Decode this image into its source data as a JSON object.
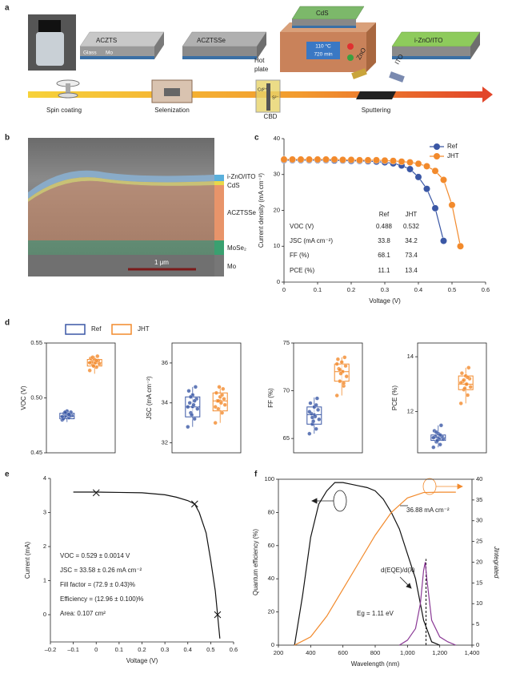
{
  "panel_labels": [
    "a",
    "b",
    "c",
    "d",
    "e",
    "f"
  ],
  "schematic": {
    "layers": [
      "ACZTS",
      "ACZTSSe",
      "CdS",
      "i-ZnO/ITO"
    ],
    "substrate": [
      "Glass",
      "Mo"
    ],
    "hotplate": [
      "Hot",
      "plate"
    ],
    "hotplate_display": [
      "110 °C",
      "720 min"
    ],
    "steps": [
      "Spin coating",
      "Selenization",
      "CBD",
      "Sputtering"
    ],
    "targets": [
      "ZnO",
      "ITO"
    ],
    "ions": [
      "Cd²⁺",
      "S²⁻"
    ]
  },
  "micrograph": {
    "layers": [
      "i-ZnO/ITO",
      "CdS",
      "ACZTSSe",
      "MoSe₂",
      "Mo"
    ],
    "scale_bar": "1 μm"
  },
  "chart_data": [
    {
      "type": "line",
      "xlabel": "Voltage (V)",
      "ylabel": "Current density (mA cm⁻²)",
      "legend": "upper right",
      "marker": "sphere",
      "x": [
        0,
        0.025,
        0.05,
        0.075,
        0.1,
        0.125,
        0.15,
        0.175,
        0.2,
        0.225,
        0.25,
        0.275,
        0.3,
        0.325,
        0.35,
        0.375,
        0.4,
        0.425,
        0.45,
        0.475,
        0.5,
        0.525
      ],
      "series": [
        {
          "name": "Ref",
          "color": "#3a57a5",
          "values": [
            34,
            34,
            34,
            34,
            34,
            34,
            33.9,
            33.9,
            33.8,
            33.8,
            33.7,
            33.6,
            33.4,
            33.1,
            32.5,
            31.5,
            29.3,
            26,
            20.6,
            11.5,
            null,
            null
          ]
        },
        {
          "name": "JHT",
          "color": "#f28a2c",
          "values": [
            34.2,
            34.2,
            34.2,
            34.2,
            34.2,
            34.2,
            34.2,
            34.1,
            34.1,
            34,
            34,
            34,
            33.9,
            33.8,
            33.6,
            33.4,
            33,
            32.3,
            31,
            28.5,
            21.5,
            10
          ]
        }
      ],
      "xlim": [
        0,
        0.6
      ],
      "xticks": [
        0,
        0.1,
        0.2,
        0.3,
        0.4,
        0.5,
        0.6
      ],
      "ylim": [
        0,
        40
      ],
      "yticks": [
        0,
        10,
        20,
        30,
        40
      ],
      "table": {
        "columns": [
          "Ref",
          "JHT"
        ],
        "rows": [
          {
            "label": "VOC (V)",
            "values": [
              0.488,
              0.532
            ]
          },
          {
            "label": "JSC (mA cm⁻²)",
            "values": [
              33.8,
              34.2
            ]
          },
          {
            "label": "FF (%)",
            "values": [
              68.1,
              73.4
            ]
          },
          {
            "label": "PCE (%)",
            "values": [
              11.1,
              13.4
            ]
          }
        ]
      }
    },
    {
      "type": "box",
      "series": [
        {
          "name": "Ref",
          "color": "#3a57a5"
        },
        {
          "name": "JHT",
          "color": "#f28a2c"
        }
      ],
      "subplots": [
        {
          "ylabel": "VOC (V)",
          "ylim": [
            0.45,
            0.55
          ],
          "yticks": [
            0.45,
            {
              "value": 0.5,
              "label": "0.50"
            },
            0.55
          ],
          "groups": [
            {
              "min": 0.478,
              "q1": 0.481,
              "median": 0.483,
              "q3": 0.486,
              "max": 0.489,
              "mean": 0.484,
              "points": [
                0.48,
                0.482,
                0.483,
                0.484,
                0.485,
                0.486,
                0.487,
                0.488,
                0.481,
                0.484,
                0.486,
                0.483,
                0.485,
                0.487
              ]
            },
            {
              "min": 0.522,
              "q1": 0.529,
              "median": 0.532,
              "q3": 0.535,
              "max": 0.538,
              "mean": 0.532,
              "points": [
                0.525,
                0.528,
                0.53,
                0.531,
                0.532,
                0.533,
                0.534,
                0.535,
                0.536,
                0.538,
                0.529,
                0.532,
                0.534,
                0.537
              ]
            }
          ]
        },
        {
          "ylabel": "JSC (mA cm⁻²)",
          "ylim": [
            31.5,
            37
          ],
          "yticks": [
            32,
            34,
            36
          ],
          "groups": [
            {
              "min": 32.8,
              "q1": 33.3,
              "median": 33.8,
              "q3": 34.3,
              "max": 34.8,
              "mean": 33.8,
              "points": [
                32.8,
                33.2,
                33.5,
                33.7,
                33.9,
                34,
                34.2,
                34.4,
                34.6,
                34.8,
                33.4,
                33.8,
                34.1,
                34.3
              ]
            },
            {
              "min": 33,
              "q1": 33.6,
              "median": 34.1,
              "q3": 34.5,
              "max": 34.8,
              "mean": 34.1,
              "points": [
                33,
                33.5,
                33.7,
                33.9,
                34,
                34.1,
                34.2,
                34.3,
                34.5,
                34.7,
                34.8,
                33.8,
                34.4,
                34.1
              ]
            }
          ]
        },
        {
          "ylabel": "FF (%)",
          "ylim": [
            63.5,
            75
          ],
          "yticks": [
            65,
            70,
            75
          ],
          "groups": [
            {
              "min": 65.5,
              "q1": 66.5,
              "median": 67.5,
              "q3": 68.3,
              "max": 69.3,
              "mean": 67.5,
              "points": [
                65.5,
                66,
                66.5,
                67,
                67.3,
                67.6,
                68,
                68.3,
                68.7,
                69.2,
                66.8,
                67.8,
                68.5,
                67.2
              ]
            },
            {
              "min": 69.5,
              "q1": 71,
              "median": 72,
              "q3": 72.8,
              "max": 73.5,
              "mean": 72,
              "points": [
                69.5,
                70.5,
                71,
                71.5,
                72,
                72.3,
                72.6,
                73,
                73.3,
                73.5,
                71.8,
                72.8,
                70.8,
                72.2
              ]
            }
          ]
        },
        {
          "ylabel": "PCE (%)",
          "ylim": [
            10.5,
            14.5
          ],
          "yticks": [
            12,
            14
          ],
          "groups": [
            {
              "min": 10.7,
              "q1": 10.95,
              "median": 11.05,
              "q3": 11.15,
              "max": 11.5,
              "mean": 11.05,
              "points": [
                10.7,
                10.8,
                10.9,
                11,
                11,
                11.1,
                11.1,
                11.2,
                11.3,
                11.5,
                10.95,
                11.05,
                11.15,
                11.25
              ]
            },
            {
              "min": 12.3,
              "q1": 12.8,
              "median": 13,
              "q3": 13.3,
              "max": 13.6,
              "mean": 13,
              "points": [
                12.3,
                12.6,
                12.8,
                12.9,
                13,
                13.1,
                13.2,
                13.3,
                13.4,
                13.6,
                12.85,
                13.05,
                13.25,
                13.15
              ]
            }
          ]
        }
      ]
    },
    {
      "type": "line",
      "xlabel": "Voltage (V)",
      "ylabel": "Current (mA)",
      "series": [
        {
          "color": "#111111",
          "x": [
            -0.1,
            0,
            0.1,
            0.2,
            0.3,
            0.35,
            0.4,
            0.43,
            0.45,
            0.48,
            0.5,
            0.52,
            0.53,
            0.54
          ],
          "values": [
            3.6,
            3.6,
            3.59,
            3.58,
            3.52,
            3.45,
            3.35,
            3.25,
            3,
            2.4,
            1.6,
            0.7,
            0,
            -0.7
          ]
        },
        {
          "color": "#111111",
          "marker": "x",
          "line": false,
          "x": [
            0,
            0.43,
            0.53
          ],
          "values": [
            3.58,
            3.25,
            0
          ]
        }
      ],
      "xlim": [
        -0.2,
        0.6
      ],
      "xticks": [
        {
          "value": -0.2,
          "label": "–0.2"
        },
        {
          "value": -0.1,
          "label": "–0.1"
        },
        0,
        0.1,
        0.2,
        0.3,
        0.4,
        0.5,
        0.6
      ],
      "ylim": [
        -0.8,
        4
      ],
      "yticks": [
        0,
        1,
        2,
        3,
        4
      ],
      "annotations": [
        "VOC = 0.529 ± 0.0014 V",
        "JSC = 33.58 ± 0.26 mA cm⁻²",
        "Fill factor = (72.9 ± 0.43)%",
        "Efficiency = (12.96 ± 0.100)%",
        "Area: 0.107 cm²"
      ]
    },
    {
      "type": "line",
      "xlabel": "Wavelength (nm)",
      "ylabel": "Quantum efficiency (%)",
      "y2label": "Jintegrated",
      "series": [
        {
          "color": "#111111",
          "x": [
            300,
            350,
            400,
            450,
            500,
            550,
            600,
            650,
            700,
            750,
            800,
            850,
            900,
            950,
            1000,
            1050,
            1100,
            1150,
            1200
          ],
          "values": [
            0,
            30,
            65,
            85,
            93,
            98,
            98,
            97,
            96,
            95,
            93,
            88,
            80,
            70,
            55,
            40,
            15,
            2,
            0
          ]
        },
        {
          "color": "#f28a2c",
          "axis": "y2",
          "x": [
            300,
            400,
            500,
            600,
            700,
            800,
            900,
            1000,
            1100,
            1200,
            1300
          ],
          "values": [
            0,
            2,
            7,
            13.5,
            20,
            26.5,
            32,
            35.5,
            36.8,
            36.88,
            36.88
          ]
        },
        {
          "color": "#8b3a96",
          "x": [
            950,
            1000,
            1050,
            1080,
            1100,
            1110,
            1120,
            1150,
            1200,
            1250,
            1300
          ],
          "values": [
            0,
            3,
            10,
            25,
            45,
            50,
            40,
            15,
            5,
            2,
            0
          ]
        }
      ],
      "vlines": [
        1115
      ],
      "xlim": [
        200,
        1400
      ],
      "xticks": [
        200,
        400,
        600,
        800,
        {
          "value": 1000,
          "label": "1,000"
        },
        {
          "value": 1200,
          "label": "1,200"
        },
        {
          "value": 1400,
          "label": "1,400"
        }
      ],
      "ylim": [
        0,
        100
      ],
      "yticks": [
        0,
        20,
        40,
        60,
        80,
        100
      ],
      "y2lim": [
        0,
        40
      ],
      "y2ticks": [
        0,
        5,
        10,
        15,
        20,
        25,
        30,
        35,
        40
      ],
      "annotations": [
        "36.88 mA cm⁻²",
        "d(EQE)/d(λ)",
        "Eg = 1.11 eV"
      ]
    }
  ]
}
